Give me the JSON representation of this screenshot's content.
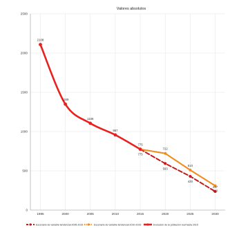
{
  "chart_data": {
    "type": "line",
    "title": "Valores absolutos",
    "xlabel": "",
    "ylabel": "",
    "x": [
      1995,
      2000,
      2005,
      2010,
      2015,
      2020,
      2025,
      2030
    ],
    "xlim": [
      1993,
      2032
    ],
    "ylim": [
      0,
      2500
    ],
    "yticks": [
      0,
      500,
      1000,
      1500,
      2000,
      2500
    ],
    "grid": true,
    "legend_position": "bottom",
    "series": [
      {
        "name": "Evolución de la población real hasta 2015",
        "color": "#e8201e",
        "dash": "solid",
        "marker": "circle",
        "points": [
          [
            1995,
            2108
          ],
          [
            2000,
            1349
          ],
          [
            2005,
            1105
          ],
          [
            2010,
            957
          ],
          [
            2015,
            775
          ]
        ]
      },
      {
        "name": "Escenario de variable tendencial 2005-2015",
        "color": "#c41a1a",
        "dash": "dashed",
        "marker": "circle",
        "points": [
          [
            2015,
            775
          ],
          [
            2020,
            593
          ],
          [
            2025,
            430
          ],
          [
            2030,
            237
          ]
        ]
      },
      {
        "name": "Escenario de variable tendencial 2010-2015",
        "color": "#f08c1e",
        "dash": "dotted",
        "marker": "circle",
        "points": [
          [
            2015,
            775
          ],
          [
            2020,
            722
          ],
          [
            2025,
            510
          ],
          [
            2030,
            310
          ]
        ]
      }
    ],
    "data_labels": [
      {
        "x": 1995,
        "y": 2108,
        "text": "2108",
        "pos": "above"
      },
      {
        "x": 2000,
        "y": 1349,
        "text": "1349",
        "pos": "above"
      },
      {
        "x": 2005,
        "y": 1105,
        "text": "1105",
        "pos": "above"
      },
      {
        "x": 2010,
        "y": 957,
        "text": "957",
        "pos": "above"
      },
      {
        "x": 2015,
        "y": 775,
        "text": "775",
        "pos": "above"
      },
      {
        "x": 2015,
        "y": 775,
        "text": "775",
        "pos": "below"
      },
      {
        "x": 2020,
        "y": 722,
        "text": "722",
        "pos": "above"
      },
      {
        "x": 2020,
        "y": 593,
        "text": "593",
        "pos": "below"
      },
      {
        "x": 2025,
        "y": 510,
        "text": "510",
        "pos": "above"
      },
      {
        "x": 2025,
        "y": 430,
        "text": "430",
        "pos": "below"
      },
      {
        "x": 2030,
        "y": 310,
        "text": "310",
        "pos": "below"
      },
      {
        "x": 2030,
        "y": 237,
        "text": "237",
        "pos": "above"
      }
    ]
  }
}
